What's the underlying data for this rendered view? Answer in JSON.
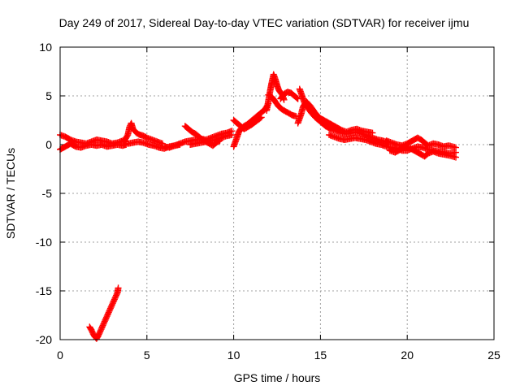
{
  "chart_data": {
    "type": "scatter",
    "title": "Day 249 of 2017, Sidereal Day-to-day VTEC variation (SDTVAR) for receiver ijmu",
    "xlabel": "GPS time / hours",
    "ylabel": "SDTVAR / TECUs",
    "xlim": [
      0,
      25
    ],
    "ylim": [
      -20,
      10
    ],
    "xticks": [
      0,
      5,
      10,
      15,
      20,
      25
    ],
    "yticks": [
      -20,
      -15,
      -10,
      -5,
      0,
      5,
      10
    ],
    "xtick_labels": [
      "0",
      "5",
      "10",
      "15",
      "20",
      "25"
    ],
    "ytick_labels": [
      "-20",
      "-15",
      "-10",
      "-5",
      "0",
      "5",
      "10"
    ],
    "grid": true,
    "marker": "plus",
    "series": [
      {
        "name": "SDTVAR",
        "color": "#ff0000",
        "tracks": [
          [
            [
              0.0,
              1.0
            ],
            [
              0.3,
              0.8
            ],
            [
              0.6,
              0.5
            ],
            [
              0.9,
              0.3
            ],
            [
              1.2,
              0.2
            ],
            [
              1.5,
              0.1
            ],
            [
              1.8,
              0.3
            ],
            [
              2.1,
              0.5
            ],
            [
              2.4,
              0.4
            ],
            [
              2.7,
              0.3
            ],
            [
              3.0,
              0.1
            ],
            [
              3.3,
              0.2
            ],
            [
              3.6,
              0.4
            ],
            [
              3.8,
              0.3
            ]
          ],
          [
            [
              0.0,
              -0.5
            ],
            [
              0.3,
              -0.2
            ],
            [
              0.6,
              0.1
            ],
            [
              0.9,
              -0.2
            ],
            [
              1.2,
              -0.3
            ],
            [
              1.5,
              -0.1
            ],
            [
              1.8,
              0.0
            ],
            [
              2.1,
              -0.1
            ],
            [
              2.4,
              0.0
            ],
            [
              2.7,
              -0.2
            ],
            [
              3.0,
              -0.1
            ],
            [
              3.3,
              0.0
            ],
            [
              3.6,
              -0.1
            ],
            [
              3.8,
              0.0
            ]
          ],
          [
            [
              3.7,
              0.4
            ],
            [
              3.9,
              1.0
            ],
            [
              4.0,
              1.8
            ],
            [
              4.1,
              2.2
            ],
            [
              4.2,
              1.6
            ],
            [
              4.4,
              1.2
            ],
            [
              4.6,
              1.0
            ],
            [
              4.8,
              0.9
            ],
            [
              5.0,
              0.7
            ],
            [
              5.3,
              0.5
            ],
            [
              5.6,
              0.3
            ],
            [
              5.9,
              0.1
            ]
          ],
          [
            [
              3.9,
              0.1
            ],
            [
              4.2,
              0.2
            ],
            [
              4.5,
              0.3
            ],
            [
              4.8,
              0.2
            ],
            [
              5.1,
              0.0
            ],
            [
              5.4,
              -0.1
            ],
            [
              5.7,
              -0.3
            ],
            [
              6.0,
              -0.4
            ],
            [
              6.3,
              -0.2
            ],
            [
              6.6,
              -0.1
            ],
            [
              6.9,
              0.0
            ]
          ],
          [
            [
              6.0,
              -0.2
            ],
            [
              6.3,
              -0.3
            ],
            [
              6.6,
              -0.1
            ],
            [
              6.9,
              0.1
            ],
            [
              7.2,
              0.3
            ],
            [
              7.5,
              0.4
            ],
            [
              7.8,
              0.5
            ],
            [
              8.1,
              0.6
            ],
            [
              8.4,
              0.5
            ],
            [
              8.7,
              0.7
            ],
            [
              9.0,
              0.9
            ],
            [
              9.3,
              1.1
            ],
            [
              9.6,
              1.2
            ],
            [
              9.9,
              1.4
            ]
          ],
          [
            [
              7.2,
              1.9
            ],
            [
              7.4,
              1.6
            ],
            [
              7.6,
              1.3
            ],
            [
              7.8,
              1.1
            ],
            [
              8.0,
              0.8
            ],
            [
              8.2,
              0.5
            ],
            [
              8.4,
              0.3
            ],
            [
              8.6,
              0.1
            ],
            [
              8.8,
              -0.1
            ],
            [
              9.0,
              0.2
            ],
            [
              9.2,
              0.4
            ]
          ],
          [
            [
              7.5,
              0.0
            ],
            [
              7.8,
              0.1
            ],
            [
              8.1,
              0.2
            ],
            [
              8.4,
              0.3
            ],
            [
              8.7,
              0.4
            ],
            [
              9.0,
              0.5
            ],
            [
              9.3,
              0.7
            ],
            [
              9.6,
              0.9
            ],
            [
              9.9,
              1.0
            ]
          ],
          [
            [
              10.0,
              -0.2
            ],
            [
              10.1,
              0.3
            ],
            [
              10.2,
              0.8
            ],
            [
              10.3,
              1.3
            ],
            [
              10.4,
              1.6
            ],
            [
              10.6,
              1.9
            ],
            [
              10.8,
              2.1
            ],
            [
              11.0,
              2.4
            ],
            [
              11.2,
              2.7
            ],
            [
              11.4,
              3.0
            ],
            [
              11.6,
              3.3
            ],
            [
              11.8,
              3.6
            ],
            [
              12.0,
              4.2
            ]
          ],
          [
            [
              10.0,
              2.5
            ],
            [
              10.2,
              2.2
            ],
            [
              10.4,
              1.9
            ],
            [
              10.6,
              1.6
            ],
            [
              10.8,
              1.8
            ],
            [
              11.0,
              2.0
            ],
            [
              11.3,
              2.4
            ],
            [
              11.6,
              2.8
            ]
          ],
          [
            [
              11.9,
              3.5
            ],
            [
              12.0,
              4.5
            ],
            [
              12.1,
              5.5
            ],
            [
              12.2,
              6.4
            ],
            [
              12.3,
              7.2
            ],
            [
              12.4,
              6.7
            ],
            [
              12.5,
              6.1
            ],
            [
              12.6,
              5.6
            ],
            [
              12.8,
              5.1
            ],
            [
              12.9,
              4.6
            ]
          ],
          [
            [
              12.0,
              5.1
            ],
            [
              12.2,
              4.9
            ],
            [
              12.4,
              4.4
            ],
            [
              12.6,
              3.9
            ],
            [
              12.8,
              3.6
            ],
            [
              13.0,
              3.4
            ],
            [
              13.2,
              3.2
            ],
            [
              13.4,
              3.0
            ],
            [
              13.6,
              2.9
            ]
          ],
          [
            [
              12.7,
              4.7
            ],
            [
              12.9,
              5.2
            ],
            [
              13.1,
              5.4
            ],
            [
              13.3,
              5.3
            ],
            [
              13.5,
              5.0
            ],
            [
              13.7,
              4.7
            ]
          ],
          [
            [
              13.8,
              5.7
            ],
            [
              13.9,
              5.2
            ],
            [
              14.0,
              4.7
            ],
            [
              14.1,
              4.2
            ],
            [
              14.3,
              3.7
            ],
            [
              14.5,
              3.2
            ],
            [
              14.7,
              2.8
            ],
            [
              14.9,
              2.5
            ],
            [
              15.1,
              2.2
            ],
            [
              15.3,
              1.9
            ],
            [
              15.6,
              1.6
            ],
            [
              15.9,
              1.4
            ],
            [
              16.2,
              1.2
            ],
            [
              16.5,
              1.1
            ],
            [
              16.8,
              1.2
            ],
            [
              17.1,
              1.3
            ],
            [
              17.4,
              1.1
            ],
            [
              17.7,
              0.9
            ],
            [
              18.0,
              0.7
            ],
            [
              18.3,
              0.5
            ],
            [
              18.6,
              0.4
            ],
            [
              18.9,
              0.2
            ]
          ],
          [
            [
              13.7,
              2.2
            ],
            [
              13.8,
              2.7
            ],
            [
              13.9,
              3.2
            ],
            [
              14.0,
              3.9
            ],
            [
              14.2,
              4.4
            ],
            [
              14.4,
              4.0
            ],
            [
              14.6,
              3.5
            ],
            [
              14.8,
              3.0
            ],
            [
              15.0,
              2.7
            ],
            [
              15.3,
              2.4
            ],
            [
              15.6,
              2.1
            ],
            [
              15.9,
              1.8
            ],
            [
              16.2,
              1.5
            ],
            [
              16.5,
              1.3
            ],
            [
              16.8,
              1.5
            ],
            [
              17.1,
              1.6
            ],
            [
              17.4,
              1.4
            ],
            [
              17.7,
              1.3
            ],
            [
              18.0,
              1.2
            ]
          ],
          [
            [
              15.5,
              1.0
            ],
            [
              15.8,
              0.8
            ],
            [
              16.1,
              0.6
            ],
            [
              16.4,
              0.5
            ],
            [
              16.7,
              0.6
            ],
            [
              17.0,
              0.7
            ],
            [
              17.3,
              0.6
            ],
            [
              17.6,
              0.5
            ],
            [
              17.9,
              0.3
            ],
            [
              18.2,
              0.1
            ],
            [
              18.5,
              0.0
            ],
            [
              18.8,
              -0.2
            ],
            [
              19.1,
              -0.3
            ],
            [
              19.4,
              -0.4
            ],
            [
              19.7,
              -0.6
            ],
            [
              20.0,
              -0.6
            ],
            [
              20.3,
              -0.4
            ],
            [
              20.6,
              -0.2
            ],
            [
              20.9,
              -0.3
            ],
            [
              21.2,
              -0.5
            ],
            [
              21.5,
              -0.6
            ],
            [
              21.8,
              -0.7
            ],
            [
              22.1,
              -0.8
            ],
            [
              22.4,
              -0.9
            ],
            [
              22.8,
              -0.8
            ]
          ],
          [
            [
              18.8,
              0.4
            ],
            [
              19.1,
              0.2
            ],
            [
              19.4,
              0.0
            ],
            [
              19.7,
              -0.1
            ],
            [
              20.0,
              0.1
            ],
            [
              20.3,
              0.4
            ],
            [
              20.6,
              0.7
            ],
            [
              20.8,
              0.5
            ],
            [
              21.0,
              0.2
            ],
            [
              21.2,
              -0.1
            ],
            [
              21.5,
              0.1
            ],
            [
              21.8,
              0.0
            ],
            [
              22.1,
              -0.2
            ],
            [
              22.4,
              -0.1
            ],
            [
              22.8,
              -0.3
            ]
          ],
          [
            [
              19.0,
              -0.6
            ],
            [
              19.3,
              -0.8
            ],
            [
              19.6,
              -0.5
            ],
            [
              19.9,
              -0.2
            ],
            [
              20.2,
              -0.4
            ],
            [
              20.5,
              -0.7
            ],
            [
              20.8,
              -1.0
            ],
            [
              21.0,
              -1.2
            ],
            [
              21.2,
              -0.9
            ],
            [
              21.5,
              -0.7
            ],
            [
              21.8,
              -0.9
            ],
            [
              22.1,
              -1.0
            ],
            [
              22.4,
              -1.1
            ],
            [
              22.8,
              -1.3
            ]
          ],
          [
            [
              1.7,
              -18.7
            ],
            [
              1.8,
              -19.0
            ],
            [
              1.9,
              -19.4
            ],
            [
              2.0,
              -19.7
            ],
            [
              2.1,
              -19.9
            ],
            [
              2.2,
              -19.6
            ],
            [
              2.3,
              -19.2
            ],
            [
              2.4,
              -18.8
            ],
            [
              2.5,
              -18.4
            ],
            [
              2.6,
              -18.0
            ],
            [
              2.7,
              -17.6
            ],
            [
              2.8,
              -17.2
            ],
            [
              2.9,
              -16.8
            ],
            [
              3.0,
              -16.4
            ],
            [
              3.1,
              -16.0
            ],
            [
              3.2,
              -15.6
            ],
            [
              3.3,
              -15.2
            ],
            [
              3.35,
              -14.7
            ]
          ]
        ]
      }
    ]
  }
}
